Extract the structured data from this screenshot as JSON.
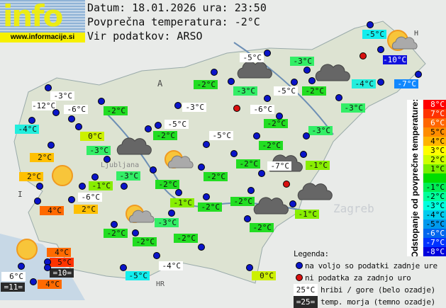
{
  "logo": {
    "text": "info",
    "url": "www.informacije.si"
  },
  "header": {
    "date": "Datum: 18.01.2026 ura: 23:50",
    "avg": "Povprečna temperatura: -2°C",
    "source": "Vir podatkov: ARSO"
  },
  "map_labels": {
    "austria": "A",
    "italy": "I",
    "croatia": "HR",
    "hungary": "H",
    "zagreb": "Zagreb",
    "ljubljana": "Ljubljana"
  },
  "stations": [
    {
      "temp": "-3°C",
      "bg": "#ffffff"
    },
    {
      "temp": "-12°C",
      "bg": "#ffffff"
    },
    {
      "temp": "-6°C",
      "bg": "#ffffff"
    },
    {
      "temp": "-2°C",
      "bg": "#22dd22"
    },
    {
      "temp": "-4°C",
      "bg": "#22eedd"
    },
    {
      "temp": "0°C",
      "bg": "#ccf000"
    },
    {
      "temp": "-3°C",
      "bg": "#33ee66"
    },
    {
      "temp": "2°C",
      "bg": "#ffc000"
    },
    {
      "temp": "-2°C",
      "bg": "#22dd22"
    },
    {
      "temp": "-3°C",
      "bg": "#ffffff"
    },
    {
      "temp": "-5°C",
      "bg": "#ffffff"
    },
    {
      "temp": "-2°C",
      "bg": "#22dd22"
    },
    {
      "temp": "-5°C",
      "bg": "#ffffff"
    },
    {
      "temp": "-5°C",
      "bg": "#ffffff"
    },
    {
      "temp": "-3°C",
      "bg": "#33ee66"
    },
    {
      "temp": "-3°C",
      "bg": "#33ee66"
    },
    {
      "temp": "-5°C",
      "bg": "#ffffff"
    },
    {
      "temp": "-2°C",
      "bg": "#22dd22"
    },
    {
      "temp": "-6°C",
      "bg": "#ffffff"
    },
    {
      "temp": "-2°C",
      "bg": "#22dd22"
    },
    {
      "temp": "-3°C",
      "bg": "#33ee66"
    },
    {
      "temp": "-4°C",
      "bg": "#22eedd"
    },
    {
      "temp": "-7°C",
      "bg": "#1188ff"
    },
    {
      "temp": "-10°C",
      "bg": "#1111dd"
    },
    {
      "temp": "-5°C",
      "bg": "#11eeee"
    },
    {
      "temp": "-3°C",
      "bg": "#33ee66"
    },
    {
      "temp": "-2°C",
      "bg": "#22dd22"
    },
    {
      "temp": "-2°C",
      "bg": "#22dd22"
    },
    {
      "temp": "-7°C",
      "bg": "#ffffff"
    },
    {
      "temp": "-1°C",
      "bg": "#88ee00"
    },
    {
      "temp": "-1°C",
      "bg": "#88ee00"
    },
    {
      "temp": "-3°C",
      "bg": "#33ee66"
    },
    {
      "temp": "-2°C",
      "bg": "#22dd22"
    },
    {
      "temp": "-2°C",
      "bg": "#22dd22"
    },
    {
      "temp": "-6°C",
      "bg": "#ffffff"
    },
    {
      "temp": "2°C",
      "bg": "#ffc000"
    },
    {
      "temp": "4°C",
      "bg": "#ff6a00"
    },
    {
      "temp": "2°C",
      "bg": "#ffc000"
    },
    {
      "temp": "-1°C",
      "bg": "#88ee00"
    },
    {
      "temp": "-2°C",
      "bg": "#22dd22"
    },
    {
      "temp": "-3°C",
      "bg": "#33ee66"
    },
    {
      "temp": "-2°C",
      "bg": "#22dd22"
    },
    {
      "temp": "-2°C",
      "bg": "#22dd22"
    },
    {
      "temp": "-2°C",
      "bg": "#22dd22"
    },
    {
      "temp": "4°C",
      "bg": "#ff6a00"
    },
    {
      "temp": "5°C",
      "bg": "#ff3300"
    },
    {
      "temp": "=10=",
      "bg": "#2a2a2a"
    },
    {
      "temp": "6°C",
      "bg": "#ffffff"
    },
    {
      "temp": "=11=",
      "bg": "#2a2a2a"
    },
    {
      "temp": "4°C",
      "bg": "#ff6a00"
    },
    {
      "temp": "-5°C",
      "bg": "#11eeee"
    },
    {
      "temp": "-4°C",
      "bg": "#ffffff"
    },
    {
      "temp": "-2°C",
      "bg": "#22dd22"
    },
    {
      "temp": "-1°C",
      "bg": "#88ee00"
    },
    {
      "temp": "-2°C",
      "bg": "#22dd22"
    },
    {
      "temp": "0°C",
      "bg": "#ccf000"
    }
  ],
  "scale": {
    "title": "Odstopanje od povprečne temperature:",
    "steps": [
      {
        "label": "8°C",
        "bg": "#ff0000",
        "fg": "#fff"
      },
      {
        "label": "7°C",
        "bg": "#ff3300",
        "fg": "#fff"
      },
      {
        "label": "6°C",
        "bg": "#ff6600",
        "fg": "#fff"
      },
      {
        "label": "5°C",
        "bg": "#ff8c00",
        "fg": "#000"
      },
      {
        "label": "4°C",
        "bg": "#ffb400",
        "fg": "#000"
      },
      {
        "label": "3°C",
        "bg": "#ffff00",
        "fg": "#000"
      },
      {
        "label": "2°C",
        "bg": "#ccff00",
        "fg": "#000"
      },
      {
        "label": "1°C",
        "bg": "#77ee00",
        "fg": "#000"
      },
      {
        "label": "",
        "bg": "#00dd00",
        "fg": "#000"
      },
      {
        "label": "-1°C",
        "bg": "#00ee55",
        "fg": "#000"
      },
      {
        "label": "-2°C",
        "bg": "#00ff99",
        "fg": "#000"
      },
      {
        "label": "-3°C",
        "bg": "#00ffdd",
        "fg": "#000"
      },
      {
        "label": "-4°C",
        "bg": "#00ccee",
        "fg": "#000"
      },
      {
        "label": "-5°C",
        "bg": "#0099ee",
        "fg": "#000"
      },
      {
        "label": "-6°C",
        "bg": "#0066ee",
        "fg": "#fff"
      },
      {
        "label": "-7°C",
        "bg": "#0033ff",
        "fg": "#fff"
      },
      {
        "label": "-8°C",
        "bg": "#0000dd",
        "fg": "#fff"
      }
    ]
  },
  "legend": {
    "title": "Legenda:",
    "available": "na voljo so podatki zadnje ure",
    "missing": "ni podatka za zadnjo uro",
    "mountain_sample": "25°C",
    "mountain": "hribi / gore (belo ozadje)",
    "sea_sample": "=25=",
    "sea": "temp. morja (temno ozadje)"
  }
}
